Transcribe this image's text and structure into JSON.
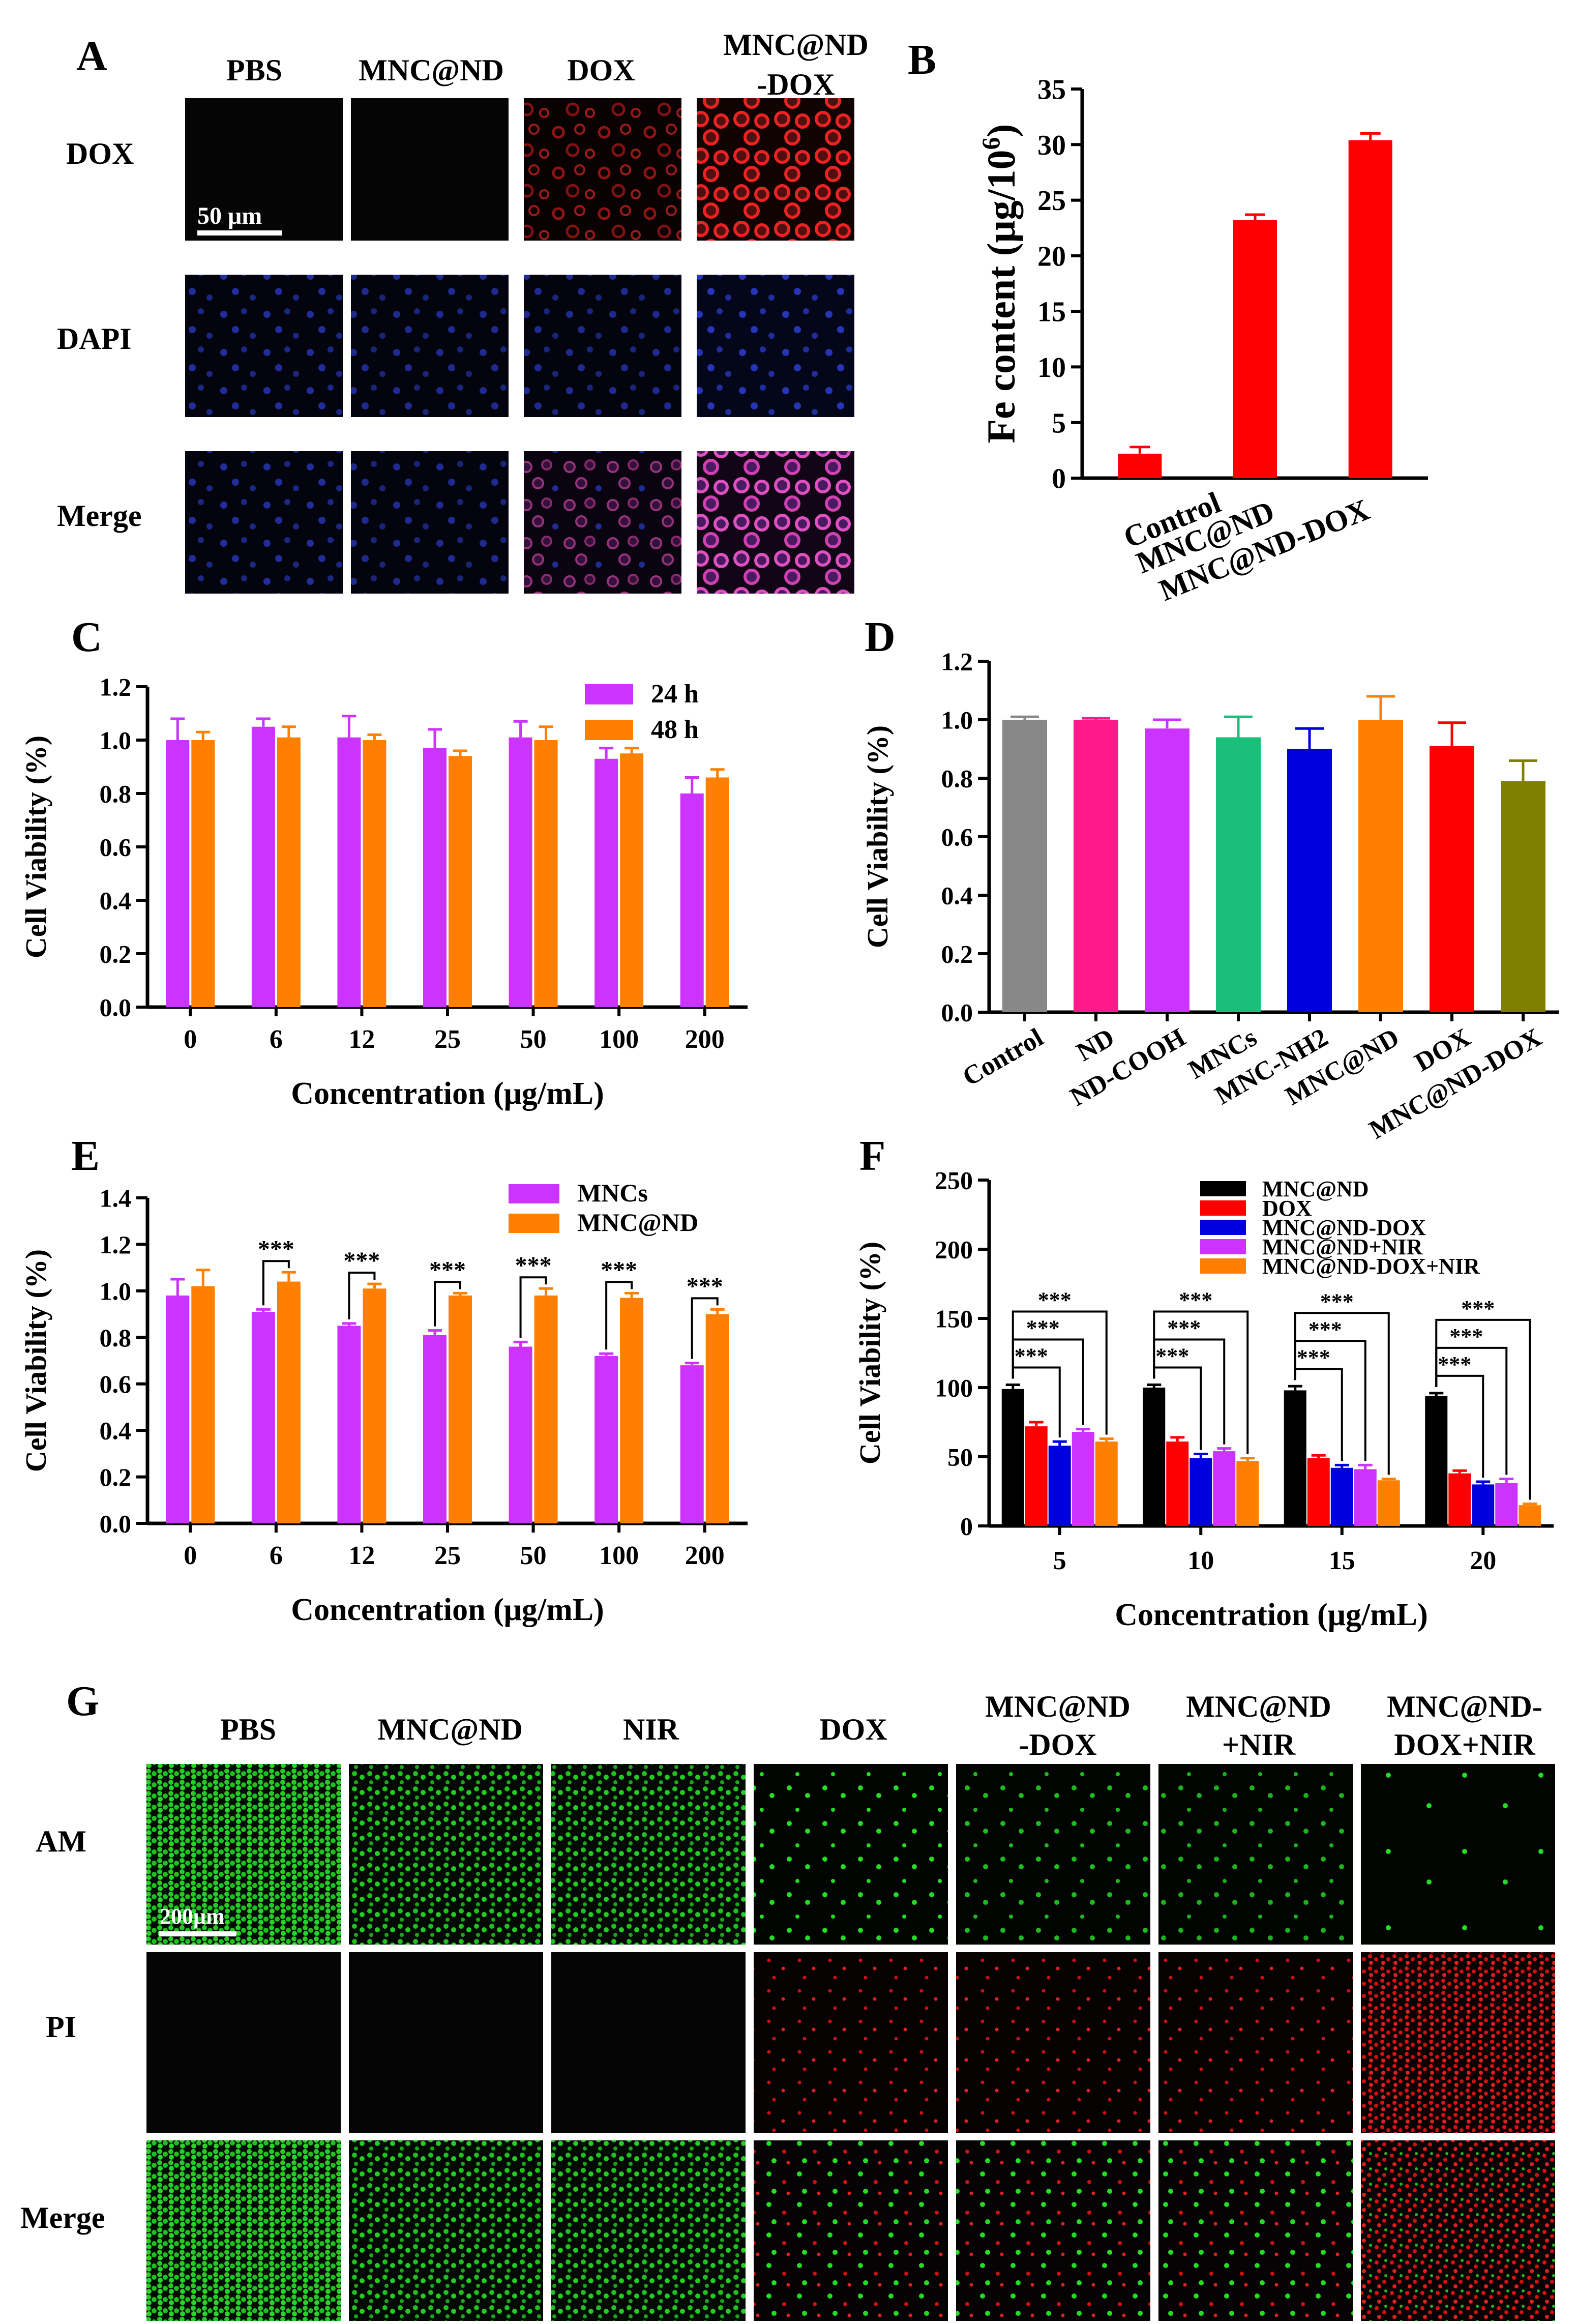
{
  "panels": {
    "A": {
      "letter": "A",
      "columns": [
        "PBS",
        "MNC@ND",
        "DOX",
        "MNC@ND",
        "-DOX"
      ],
      "rows": [
        "DOX",
        "DAPI",
        "Merge"
      ],
      "scale_bar": "50 μm"
    },
    "G": {
      "letter": "G",
      "columns": [
        "PBS",
        "MNC@ND",
        "NIR",
        "DOX",
        "MNC@ND",
        "-DOX",
        "MNC@ND",
        "+NIR",
        "MNC@ND-",
        "DOX+NIR"
      ],
      "rows": [
        "AM",
        "PI",
        "Merge"
      ],
      "scale_bar": "200μm"
    }
  },
  "colors": {
    "red_bar": "#ff0000",
    "magenta_bar": "#cc33ff",
    "orange_bar": "#ff8000",
    "black": "#000000",
    "blue": "#0000dd",
    "grey": "#888888",
    "pink": "#ff1a8c",
    "green": "#1abf7a",
    "olive": "#808000",
    "micro_bg": "#050505",
    "am_green": "#22dd22",
    "pi_red": "#dd1111",
    "dox_red": "#cc2222",
    "dapi_blue": "#2233bb"
  },
  "chart_data": [
    {
      "panel": "B",
      "letter": "B",
      "type": "bar",
      "categories": [
        "Control",
        "MNC@ND",
        "MNC@ND-DOX"
      ],
      "values": [
        2.2,
        23.2,
        30.4
      ],
      "errors": [
        0.6,
        0.5,
        0.6
      ],
      "ylabel": "Fe content (μg/10⁶)",
      "ylabel_main": "Fe content (μg/10",
      "ylabel_sup": "6",
      "ylabel_end": ")",
      "ylim": [
        0,
        35
      ],
      "yticks": [
        "0",
        "5",
        "10",
        "15",
        "20",
        "25",
        "30",
        "35"
      ]
    },
    {
      "panel": "C",
      "letter": "C",
      "type": "bar",
      "categories": [
        "0",
        "6",
        "12",
        "25",
        "50",
        "100",
        "200"
      ],
      "series": [
        {
          "name": "24 h",
          "values": [
            1.0,
            1.05,
            1.01,
            0.97,
            1.01,
            0.93,
            0.8
          ],
          "errors": [
            0.08,
            0.03,
            0.08,
            0.07,
            0.06,
            0.04,
            0.06
          ]
        },
        {
          "name": "48 h",
          "values": [
            1.0,
            1.01,
            1.0,
            0.94,
            1.0,
            0.95,
            0.86
          ],
          "errors": [
            0.03,
            0.04,
            0.02,
            0.02,
            0.05,
            0.02,
            0.03
          ]
        }
      ],
      "xlabel": "Concentration (μg/mL)",
      "ylabel": "Cell Viability (%)",
      "ylim": [
        0,
        1.2
      ],
      "yticks": [
        "0.0",
        "0.2",
        "0.4",
        "0.6",
        "0.8",
        "1.0",
        "1.2"
      ]
    },
    {
      "panel": "D",
      "letter": "D",
      "type": "bar",
      "categories": [
        "Control",
        "ND",
        "ND-COOH",
        "MNCs",
        "MNC-NH2",
        "MNC@ND",
        "DOX",
        "MNC@ND-DOX"
      ],
      "values": [
        1.0,
        1.0,
        0.97,
        0.94,
        0.9,
        1.0,
        0.91,
        0.79
      ],
      "errors": [
        0.01,
        0.005,
        0.03,
        0.07,
        0.07,
        0.08,
        0.08,
        0.07
      ],
      "ylabel": "Cell Viability (%)",
      "ylim": [
        0,
        1.2
      ],
      "yticks": [
        "0.0",
        "0.2",
        "0.4",
        "0.6",
        "0.8",
        "1.0",
        "1.2"
      ]
    },
    {
      "panel": "E",
      "letter": "E",
      "type": "bar",
      "categories": [
        "0",
        "6",
        "12",
        "25",
        "50",
        "100",
        "200"
      ],
      "series": [
        {
          "name": "MNCs",
          "values": [
            0.98,
            0.91,
            0.85,
            0.81,
            0.76,
            0.72,
            0.68
          ],
          "errors": [
            0.07,
            0.01,
            0.01,
            0.02,
            0.02,
            0.01,
            0.01
          ]
        },
        {
          "name": "MNC@ND",
          "values": [
            1.02,
            1.04,
            1.01,
            0.98,
            0.98,
            0.97,
            0.9
          ],
          "errors": [
            0.07,
            0.04,
            0.02,
            0.01,
            0.03,
            0.02,
            0.02
          ]
        }
      ],
      "significance": "***",
      "xlabel": "Concentration (μg/mL)",
      "ylabel": "Cell Viability (%)",
      "ylim": [
        0,
        1.4
      ],
      "yticks": [
        "0.0",
        "0.2",
        "0.4",
        "0.6",
        "0.8",
        "1.0",
        "1.2",
        "1.4"
      ]
    },
    {
      "panel": "F",
      "letter": "F",
      "type": "bar",
      "categories": [
        "5",
        "10",
        "15",
        "20"
      ],
      "series": [
        {
          "name": "MNC@ND",
          "values": [
            99,
            100,
            98,
            94
          ],
          "errors": [
            3,
            2,
            3,
            2
          ]
        },
        {
          "name": "DOX",
          "values": [
            72,
            61,
            49,
            38
          ],
          "errors": [
            3,
            3,
            2,
            2
          ]
        },
        {
          "name": "MNC@ND-DOX",
          "values": [
            58,
            49,
            42,
            30
          ],
          "errors": [
            3,
            3,
            2,
            2
          ]
        },
        {
          "name": "MNC@ND+NIR",
          "values": [
            68,
            54,
            41,
            31
          ],
          "errors": [
            2,
            2,
            3,
            3
          ]
        },
        {
          "name": "MNC@ND-DOX+NIR",
          "values": [
            61,
            47,
            33,
            15
          ],
          "errors": [
            2,
            2,
            1,
            1
          ]
        }
      ],
      "significance": "***",
      "xlabel": "Concentration (μg/mL)",
      "ylabel": "Cell Viability (%)",
      "ylim": [
        0,
        250
      ],
      "yticks": [
        "0",
        "50",
        "100",
        "150",
        "200",
        "250"
      ]
    }
  ]
}
